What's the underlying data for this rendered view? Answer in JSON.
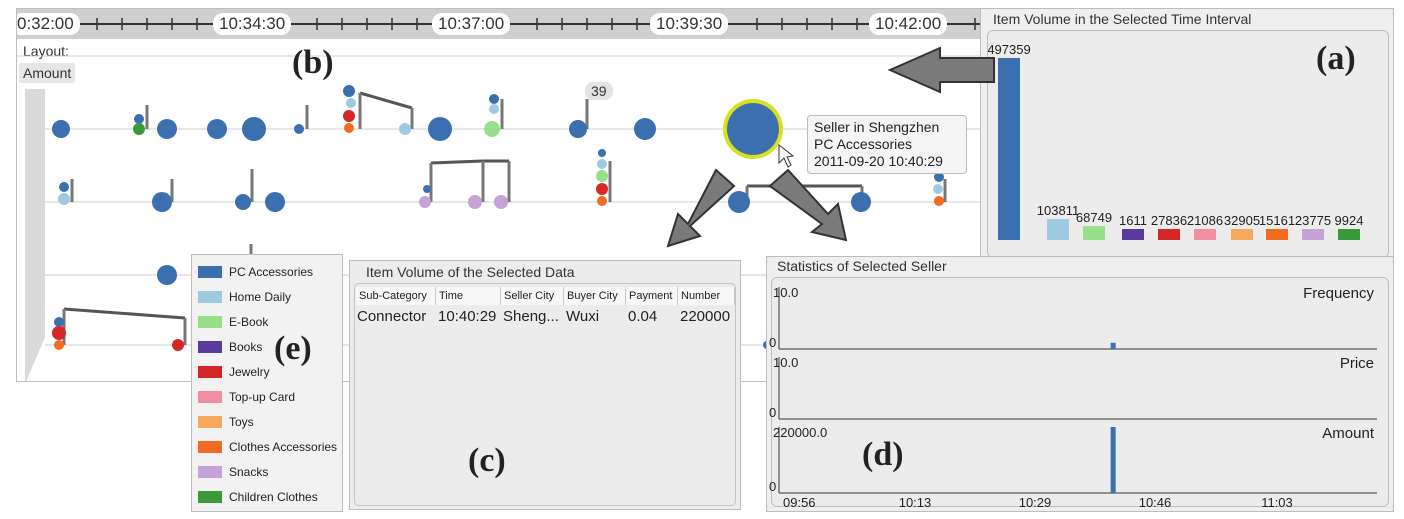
{
  "timeline": {
    "time_labels": [
      "0:32:00",
      "10:34:30",
      "10:37:00",
      "10:39:30",
      "10:42:00"
    ],
    "layout_label": "Layout:",
    "layout_value": "Amount",
    "count_badge": "39",
    "tooltip": {
      "line1": "Seller in Shengzhen",
      "line2": "PC Accessories",
      "line3": "2011-09-20 10:40:29"
    },
    "marker": "(b)"
  },
  "volume_panel": {
    "title": "Item Volume in the Selected Time Interval",
    "marker": "(a)",
    "chart_data": {
      "type": "bar",
      "categories": [
        "PC Accessories",
        "Home Daily",
        "E-Book",
        "Books",
        "Jewelry",
        "Top-up Card",
        "Toys",
        "Clothes Accessories",
        "Snacks",
        "Children Clothes"
      ],
      "values": [
        497359,
        103811,
        68749,
        1611,
        27836,
        21086,
        32905,
        15161,
        23775,
        9924
      ],
      "value_labels": [
        "497359",
        "103811",
        "68749",
        "1611",
        "27836",
        "21086",
        "32905",
        "15161",
        "23775",
        "9924"
      ]
    }
  },
  "legend": {
    "marker": "(e)",
    "items": [
      {
        "label": "PC Accessories",
        "color": "#3a6fb0"
      },
      {
        "label": "Home Daily",
        "color": "#9ecae1"
      },
      {
        "label": "E-Book",
        "color": "#98df8a"
      },
      {
        "label": "Books",
        "color": "#5b3a9e"
      },
      {
        "label": "Jewelry",
        "color": "#d62728"
      },
      {
        "label": "Top-up Card",
        "color": "#f28ea2"
      },
      {
        "label": "Toys",
        "color": "#f7a85c"
      },
      {
        "label": "Clothes Accessories",
        "color": "#f26b21"
      },
      {
        "label": "Snacks",
        "color": "#c5a3d9"
      },
      {
        "label": "Children Clothes",
        "color": "#3a9a3a"
      }
    ]
  },
  "selected_table": {
    "title": "Item Volume of the Selected Data",
    "marker": "(c)",
    "columns": [
      "Sub-Category",
      "Time",
      "Seller City",
      "Buyer City",
      "Payment",
      "Number"
    ],
    "rows": [
      [
        "Connector",
        "10:40:29",
        "Sheng...",
        "Wuxi",
        "0.04",
        "220000"
      ]
    ]
  },
  "seller_stats": {
    "title": "Statistics of Selected Seller",
    "marker": "(d)",
    "chart_data": [
      {
        "type": "bar",
        "title": "Frequency",
        "x": [
          "09:56",
          "10:13",
          "10:29",
          "10:46",
          "11:03"
        ],
        "y_top_label": "10.0",
        "y_bottom_label": "0",
        "points": [
          {
            "x": "10:40",
            "y": 1
          }
        ],
        "ylim": [
          0,
          10
        ]
      },
      {
        "type": "bar",
        "title": "Price",
        "y_top_label": "10.0",
        "y_bottom_label": "0",
        "points": [],
        "ylim": [
          0,
          10
        ]
      },
      {
        "type": "bar",
        "title": "Amount",
        "y_top_label": "220000.0",
        "y_bottom_label": "0",
        "points": [
          {
            "x": "10:40",
            "y": 220000
          }
        ],
        "ylim": [
          0,
          220000
        ]
      }
    ],
    "x_ticks": [
      "09:56",
      "10:13",
      "10:29",
      "10:46",
      "11:03"
    ]
  }
}
